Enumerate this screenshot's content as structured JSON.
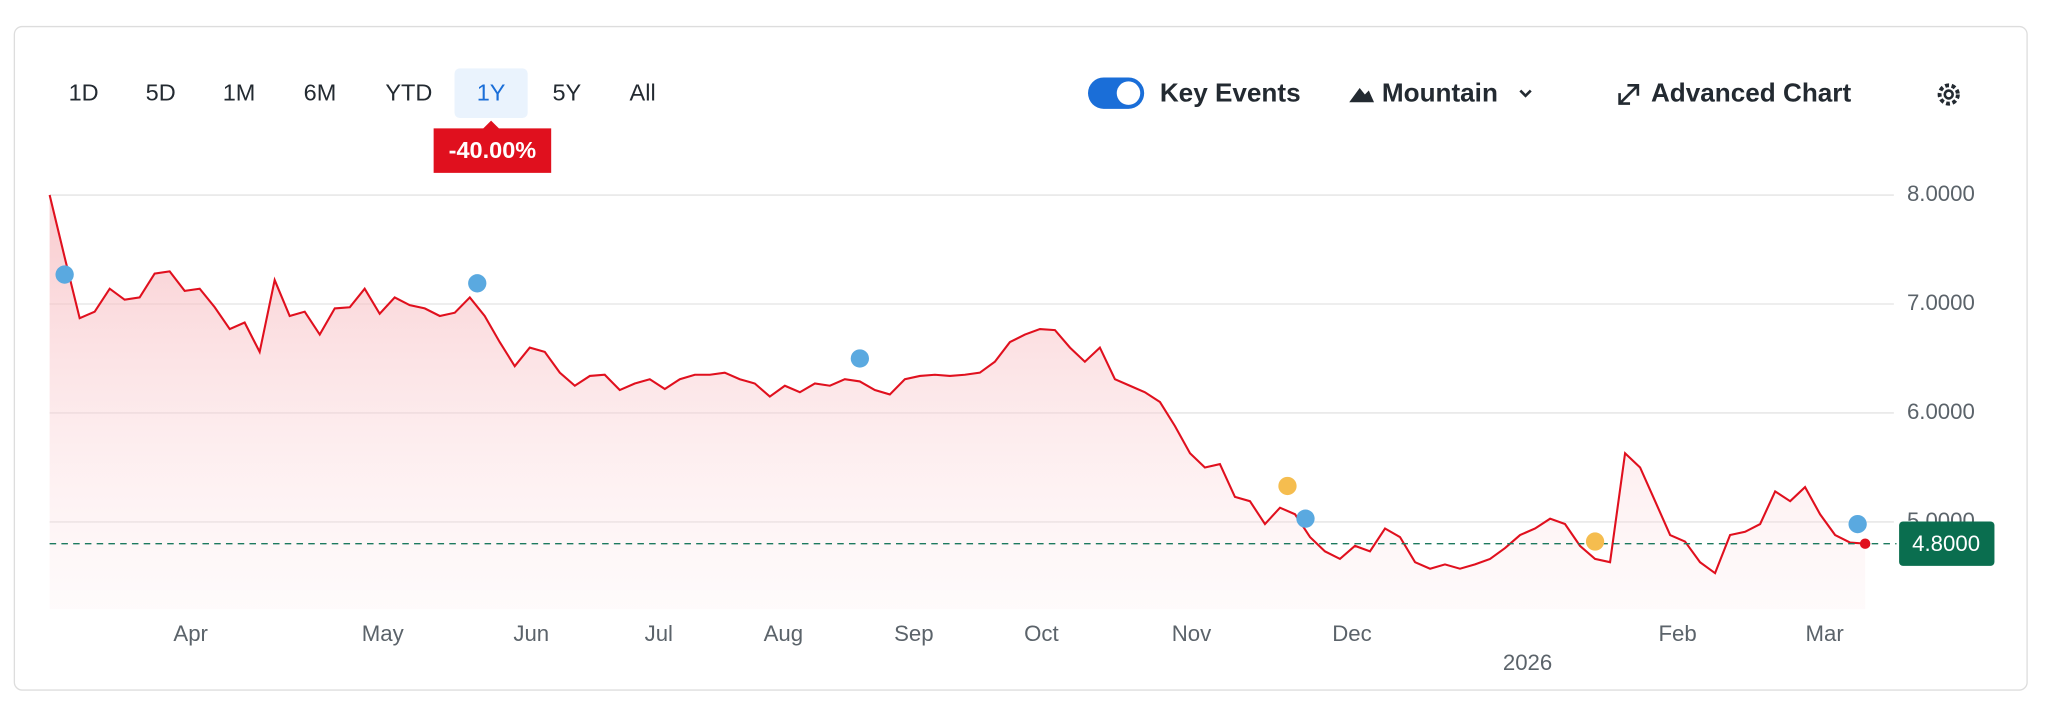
{
  "toolbar": {
    "ranges": [
      "1D",
      "5D",
      "1M",
      "6M",
      "YTD",
      "1Y",
      "5Y",
      "All"
    ],
    "selected": 5,
    "change": "-40.00%",
    "key_events": "Key Events",
    "chart_style": "Mountain",
    "advanced": "Advanced Chart"
  },
  "chart_data": {
    "type": "line",
    "color": "#e0101e",
    "xlim": [
      0,
      121
    ],
    "xticks": [
      {
        "value": 9.4,
        "label": "Apr"
      },
      {
        "value": 22.2,
        "label": "May"
      },
      {
        "value": 32.1,
        "label": "Jun"
      },
      {
        "value": 40.6,
        "label": "Jul"
      },
      {
        "value": 48.9,
        "label": "Aug"
      },
      {
        "value": 57.6,
        "label": "Sep"
      },
      {
        "value": 66.1,
        "label": "Oct"
      },
      {
        "value": 76.1,
        "label": "Nov"
      },
      {
        "value": 86.8,
        "label": "Dec"
      },
      {
        "value": 108.5,
        "label": "Feb"
      },
      {
        "value": 118.3,
        "label": "Mar"
      }
    ],
    "year_ticks": [
      {
        "value": 98.5,
        "label": "2026"
      }
    ],
    "ylim": [
      4.2,
      8.0
    ],
    "yticks": [
      {
        "value": 8,
        "label": "8.0000"
      },
      {
        "value": 7,
        "label": "7.0000"
      },
      {
        "value": 6,
        "label": "6.0000"
      },
      {
        "value": 5,
        "label": "5.0000"
      }
    ],
    "grid": true,
    "values": [
      8.0,
      7.43,
      6.87,
      6.93,
      7.14,
      7.04,
      7.06,
      7.28,
      7.3,
      7.12,
      7.14,
      6.97,
      6.77,
      6.83,
      6.56,
      7.22,
      6.89,
      6.93,
      6.72,
      6.96,
      6.97,
      7.14,
      6.91,
      7.06,
      6.99,
      6.96,
      6.89,
      6.92,
      7.06,
      6.89,
      6.65,
      6.43,
      6.6,
      6.56,
      6.37,
      6.25,
      6.34,
      6.35,
      6.21,
      6.27,
      6.31,
      6.22,
      6.31,
      6.35,
      6.35,
      6.37,
      6.31,
      6.27,
      6.15,
      6.25,
      6.19,
      6.27,
      6.25,
      6.31,
      6.29,
      6.21,
      6.17,
      6.31,
      6.34,
      6.35,
      6.34,
      6.35,
      6.37,
      6.47,
      6.65,
      6.72,
      6.77,
      6.76,
      6.6,
      6.47,
      6.6,
      6.31,
      6.25,
      6.19,
      6.1,
      5.88,
      5.63,
      5.5,
      5.53,
      5.23,
      5.19,
      4.98,
      5.13,
      5.07,
      4.86,
      4.73,
      4.66,
      4.78,
      4.73,
      4.94,
      4.86,
      4.63,
      4.57,
      4.61,
      4.57,
      4.61,
      4.66,
      4.76,
      4.88,
      4.94,
      5.03,
      4.98,
      4.78,
      4.66,
      4.63,
      5.63,
      5.5,
      5.19,
      4.88,
      4.82,
      4.63,
      4.53,
      4.88,
      4.91,
      4.98,
      5.28,
      5.19,
      5.32,
      5.07,
      4.88,
      4.81,
      4.8
    ],
    "current": {
      "value": 4.8,
      "label": "4.8000"
    },
    "events": [
      {
        "x": 1,
        "y": 7.27,
        "color": "#5aa9e0"
      },
      {
        "x": 28.5,
        "y": 7.19,
        "color": "#5aa9e0"
      },
      {
        "x": 54,
        "y": 6.5,
        "color": "#5aa9e0"
      },
      {
        "x": 82.5,
        "y": 5.33,
        "color": "#f5bd4f"
      },
      {
        "x": 83.7,
        "y": 5.03,
        "color": "#5aa9e0"
      },
      {
        "x": 103,
        "y": 4.82,
        "color": "#f5bd4f"
      },
      {
        "x": 120.5,
        "y": 4.98,
        "color": "#5aa9e0"
      }
    ]
  }
}
